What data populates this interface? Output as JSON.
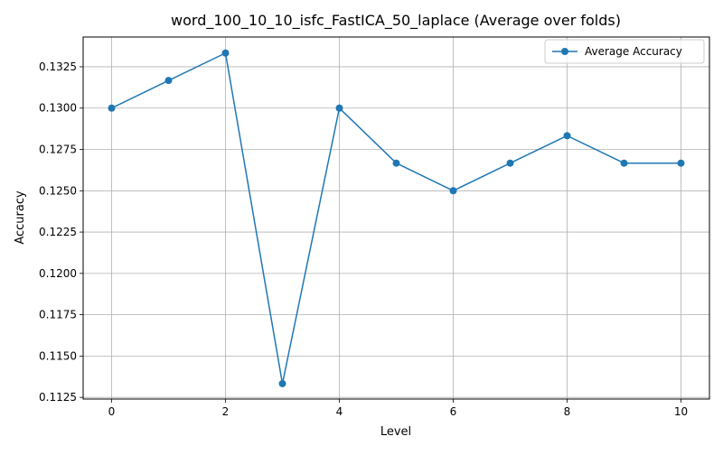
{
  "chart_data": {
    "type": "line",
    "title": "word_100_10_10_isfc_FastICA_50_laplace (Average over folds)",
    "xlabel": "Level",
    "ylabel": "Accuracy",
    "x": [
      0,
      1,
      2,
      3,
      4,
      5,
      6,
      7,
      8,
      9,
      10
    ],
    "series": [
      {
        "name": "Average Accuracy",
        "values": [
          0.13,
          0.13167,
          0.13333,
          0.11333,
          0.13,
          0.12667,
          0.125,
          0.12667,
          0.12833,
          0.12667,
          0.12667
        ],
        "color": "#1f77b4",
        "marker": "circle"
      }
    ],
    "xlim": [
      -0.5,
      10.5
    ],
    "ylim": [
      0.1124,
      0.1343
    ],
    "xticks": [
      0,
      2,
      4,
      6,
      8,
      10
    ],
    "xtick_labels": [
      "0",
      "2",
      "4",
      "6",
      "8",
      "10"
    ],
    "yticks": [
      0.1125,
      0.115,
      0.1175,
      0.12,
      0.1225,
      0.125,
      0.1275,
      0.13,
      0.1325
    ],
    "ytick_labels": [
      "0.1125",
      "0.1150",
      "0.1175",
      "0.1200",
      "0.1225",
      "0.1250",
      "0.1275",
      "0.1300",
      "0.1325"
    ],
    "grid": true,
    "legend": "top-right"
  }
}
